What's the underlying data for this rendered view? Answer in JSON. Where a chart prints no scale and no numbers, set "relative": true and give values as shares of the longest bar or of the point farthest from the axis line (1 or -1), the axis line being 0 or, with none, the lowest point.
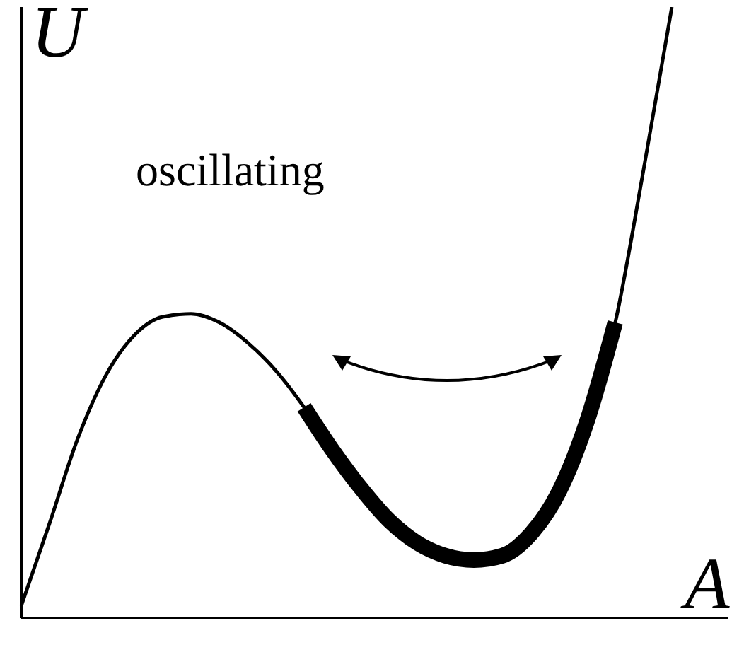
{
  "chart_data": {
    "type": "line",
    "relative": true,
    "xlabel": "A",
    "ylabel": "U",
    "annotations": [
      "oscillating"
    ],
    "categories": [
      null,
      null,
      null,
      null,
      null,
      null,
      null,
      null,
      null,
      null,
      null,
      null,
      null,
      null,
      null,
      null,
      null,
      null,
      null,
      null,
      null,
      null,
      null,
      null
    ],
    "series": [
      {
        "color": "#000000",
        "values": [
          0.02,
          0.155,
          0.294,
          0.398,
          0.463,
          0.493,
          0.498,
          0.484,
          0.451,
          0.405,
          0.345,
          0.275,
          0.213,
          0.16,
          0.123,
          0.102,
          0.095,
          0.102,
          0.137,
          0.206,
          0.322,
          0.484,
          0.734,
          1
        ]
      },
      {
        "color": "#000000",
        "values": [
          null,
          null,
          null,
          null,
          null,
          null,
          null,
          null,
          null,
          null,
          0.345,
          0.275,
          0.213,
          0.16,
          0.123,
          0.102,
          0.095,
          0.102,
          0.137,
          0.206,
          0.322,
          0.484,
          null,
          null
        ]
      }
    ]
  }
}
